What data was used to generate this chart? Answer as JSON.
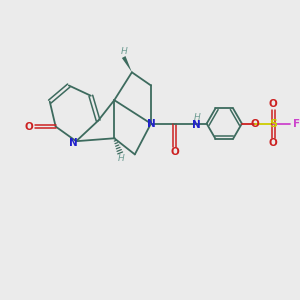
{
  "bg_color": "#EBEBEB",
  "bond_color": "#3D6B5E",
  "N_color": "#2020CC",
  "O_color": "#CC2020",
  "S_color": "#CCCC00",
  "F_color": "#CC44CC",
  "H_color": "#6A9A90",
  "lw_single": 1.3,
  "lw_double": 1.1,
  "lw_wedge": 1.0,
  "figsize": [
    3.0,
    3.0
  ],
  "dpi": 100,
  "xlim": [
    0,
    10
  ],
  "ylim": [
    0,
    10
  ]
}
